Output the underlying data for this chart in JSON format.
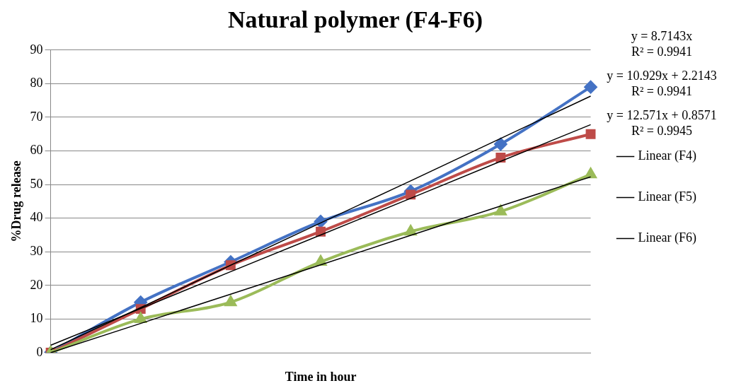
{
  "chart_data": {
    "type": "line",
    "title": "Natural polymer (F4-F6)",
    "xlabel": "Time in hour",
    "ylabel": "%Drug release",
    "categories": [
      null,
      null,
      null,
      null,
      null,
      null,
      null
    ],
    "series": [
      {
        "color": "#4472c4",
        "marker": "diamond",
        "values": [
          0,
          15,
          27,
          39,
          48,
          62,
          79
        ]
      },
      {
        "color": "#be4b48",
        "marker": "square",
        "values": [
          0,
          13,
          26,
          36,
          47,
          58,
          65
        ]
      },
      {
        "color": "#9bbb59",
        "marker": "triangle",
        "values": [
          0,
          10,
          15,
          27,
          36,
          42,
          53
        ]
      },
      {
        "name": "Linear (F4)",
        "color": "#000000",
        "marker": "none",
        "values": [
          0.9,
          13.4,
          26.0,
          38.6,
          51.1,
          63.7,
          76.3
        ]
      },
      {
        "name": "Linear (F5)",
        "color": "#000000",
        "marker": "none",
        "values": [
          2.2,
          13.1,
          24.1,
          35.0,
          45.9,
          56.9,
          67.8
        ]
      },
      {
        "name": "Linear (F6)",
        "color": "#000000",
        "marker": "none",
        "values": [
          0,
          8.7,
          17.4,
          26.1,
          34.9,
          43.6,
          52.3
        ]
      }
    ],
    "ylim": [
      0,
      90
    ],
    "yticks": [
      0,
      10,
      20,
      30,
      40,
      50,
      60,
      70,
      80,
      90
    ],
    "grid": "y",
    "legend": "right",
    "line_style": "solid",
    "annotations": [
      "y = 8.7143x",
      "R² = 0.9941",
      "y = 10.929x + 2.2143",
      "R² = 0.9941",
      "y = 12.571x + 0.8571",
      "R² = 0.9945"
    ]
  }
}
